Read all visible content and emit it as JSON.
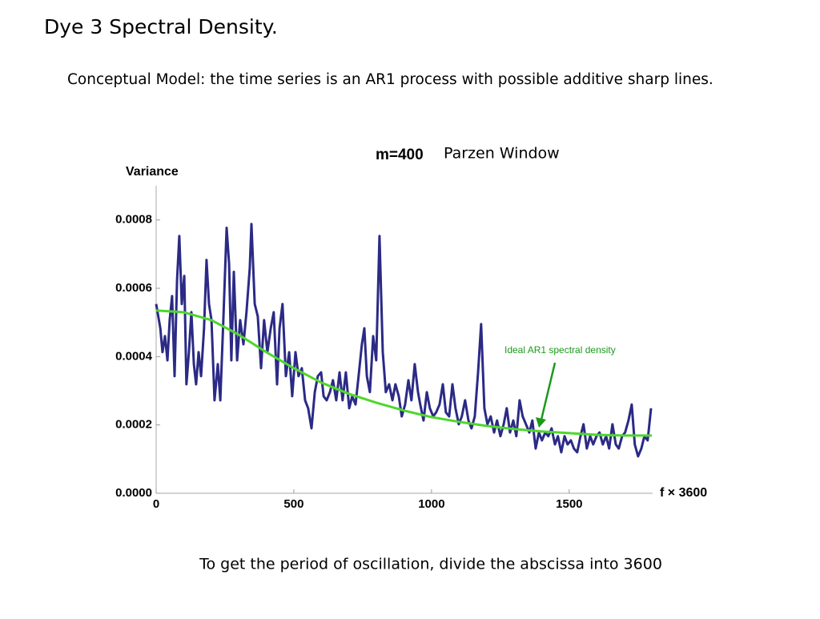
{
  "title": "Dye 3 Spectral Density.",
  "subtitle": "Conceptual Model: the time series is an AR1 process with possible additive sharp lines.",
  "footer": "To get the period of oscillation, divide the abscissa into 3600",
  "chart_data": {
    "type": "line",
    "title": "m=400",
    "subtitle": "Parzen Window",
    "y_label": "Variance",
    "x_label": "f × 3600",
    "xlim": [
      0,
      1800
    ],
    "xticks": [
      0,
      500,
      1000,
      1500
    ],
    "ylim": [
      0,
      0.0009
    ],
    "yticks": [
      {
        "value": 0,
        "label": "0.0000"
      },
      0.0002,
      0.0004,
      0.0006,
      0.0008
    ],
    "grid": false,
    "series": [
      {
        "color": "#2b2a86",
        "x": [
          0,
          15,
          23,
          32,
          41,
          49,
          58,
          67,
          76,
          84,
          93,
          102,
          110,
          119,
          128,
          137,
          145,
          154,
          163,
          174,
          183,
          192,
          201,
          212,
          224,
          233,
          244,
          256,
          265,
          273,
          282,
          294,
          305,
          317,
          328,
          340,
          346,
          358,
          369,
          381,
          392,
          404,
          416,
          427,
          439,
          448,
          459,
          471,
          483,
          494,
          506,
          517,
          529,
          541,
          552,
          564,
          576,
          587,
          599,
          608,
          619,
          631,
          642,
          654,
          666,
          677,
          689,
          701,
          712,
          724,
          735,
          747,
          756,
          765,
          776,
          788,
          799,
          811,
          823,
          834,
          846,
          858,
          869,
          881,
          892,
          904,
          916,
          927,
          939,
          951,
          959,
          971,
          983,
          994,
          1006,
          1017,
          1029,
          1041,
          1052,
          1064,
          1076,
          1087,
          1099,
          1110,
          1122,
          1134,
          1145,
          1157,
          1169,
          1180,
          1192,
          1203,
          1215,
          1227,
          1238,
          1250,
          1262,
          1273,
          1285,
          1297,
          1308,
          1320,
          1331,
          1343,
          1355,
          1366,
          1378,
          1390,
          1401,
          1413,
          1424,
          1436,
          1448,
          1459,
          1471,
          1483,
          1494,
          1506,
          1517,
          1529,
          1541,
          1552,
          1564,
          1576,
          1587,
          1599,
          1610,
          1622,
          1634,
          1645,
          1657,
          1669,
          1680,
          1692,
          1703,
          1715,
          1727,
          1738,
          1750,
          1762,
          1773,
          1785,
          1797
        ],
        "values": [
          0.000554,
          0.000483,
          0.000413,
          0.00046,
          0.000389,
          0.000507,
          0.000577,
          0.000343,
          0.000624,
          0.000753,
          0.000554,
          0.000636,
          0.000319,
          0.000413,
          0.00053,
          0.000378,
          0.000319,
          0.000413,
          0.000343,
          0.000483,
          0.000683,
          0.000554,
          0.000507,
          0.000272,
          0.000378,
          0.000272,
          0.000507,
          0.000777,
          0.000671,
          0.000389,
          0.000648,
          0.000389,
          0.000507,
          0.000436,
          0.00053,
          0.000659,
          0.000788,
          0.000554,
          0.000518,
          0.000366,
          0.000507,
          0.000413,
          0.000483,
          0.00053,
          0.000319,
          0.000483,
          0.000554,
          0.000343,
          0.000413,
          0.000284,
          0.000413,
          0.000343,
          0.000366,
          0.000272,
          0.000249,
          0.00019,
          0.000296,
          0.000343,
          0.000354,
          0.000284,
          0.000272,
          0.000296,
          0.000331,
          0.000272,
          0.000354,
          0.000272,
          0.000354,
          0.000249,
          0.000284,
          0.00026,
          0.000343,
          0.000436,
          0.000483,
          0.000343,
          0.000296,
          0.00046,
          0.000389,
          0.000753,
          0.000413,
          0.000296,
          0.000319,
          0.000272,
          0.000319,
          0.000284,
          0.000225,
          0.00026,
          0.000331,
          0.000272,
          0.000378,
          0.000296,
          0.00026,
          0.000213,
          0.000296,
          0.000249,
          0.000225,
          0.000237,
          0.00026,
          0.000319,
          0.000237,
          0.000225,
          0.000319,
          0.000249,
          0.000202,
          0.000225,
          0.000272,
          0.000213,
          0.00019,
          0.000225,
          0.000354,
          0.000495,
          0.000249,
          0.000202,
          0.000225,
          0.000178,
          0.000213,
          0.000167,
          0.000202,
          0.000249,
          0.000178,
          0.000213,
          0.000167,
          0.000272,
          0.000225,
          0.000202,
          0.000178,
          0.000213,
          0.000131,
          0.000178,
          0.000155,
          0.000178,
          0.000167,
          0.00019,
          0.000143,
          0.000167,
          0.00012,
          0.000167,
          0.000143,
          0.000155,
          0.000131,
          0.00012,
          0.000167,
          0.000202,
          0.000131,
          0.000167,
          0.000143,
          0.000167,
          0.000178,
          0.000143,
          0.000167,
          0.000131,
          0.000202,
          0.000143,
          0.000131,
          0.000167,
          0.000178,
          0.000213,
          0.00026,
          0.000143,
          0.000108,
          0.000131,
          0.000167,
          0.000155,
          0.000249
        ]
      },
      {
        "name": "Ideal AR1 spectral density",
        "color": "#4fd62e",
        "x": [
          0,
          100,
          200,
          300,
          400,
          500,
          600,
          700,
          800,
          900,
          1000,
          1100,
          1200,
          1300,
          1400,
          1500,
          1600,
          1700,
          1800
        ],
        "values": [
          0.000535,
          0.00053,
          0.000507,
          0.000464,
          0.000413,
          0.000366,
          0.000324,
          0.000291,
          0.000265,
          0.000242,
          0.000223,
          0.000209,
          0.000197,
          0.000188,
          0.000181,
          0.000176,
          0.000171,
          0.000169,
          0.000169
        ]
      }
    ]
  }
}
